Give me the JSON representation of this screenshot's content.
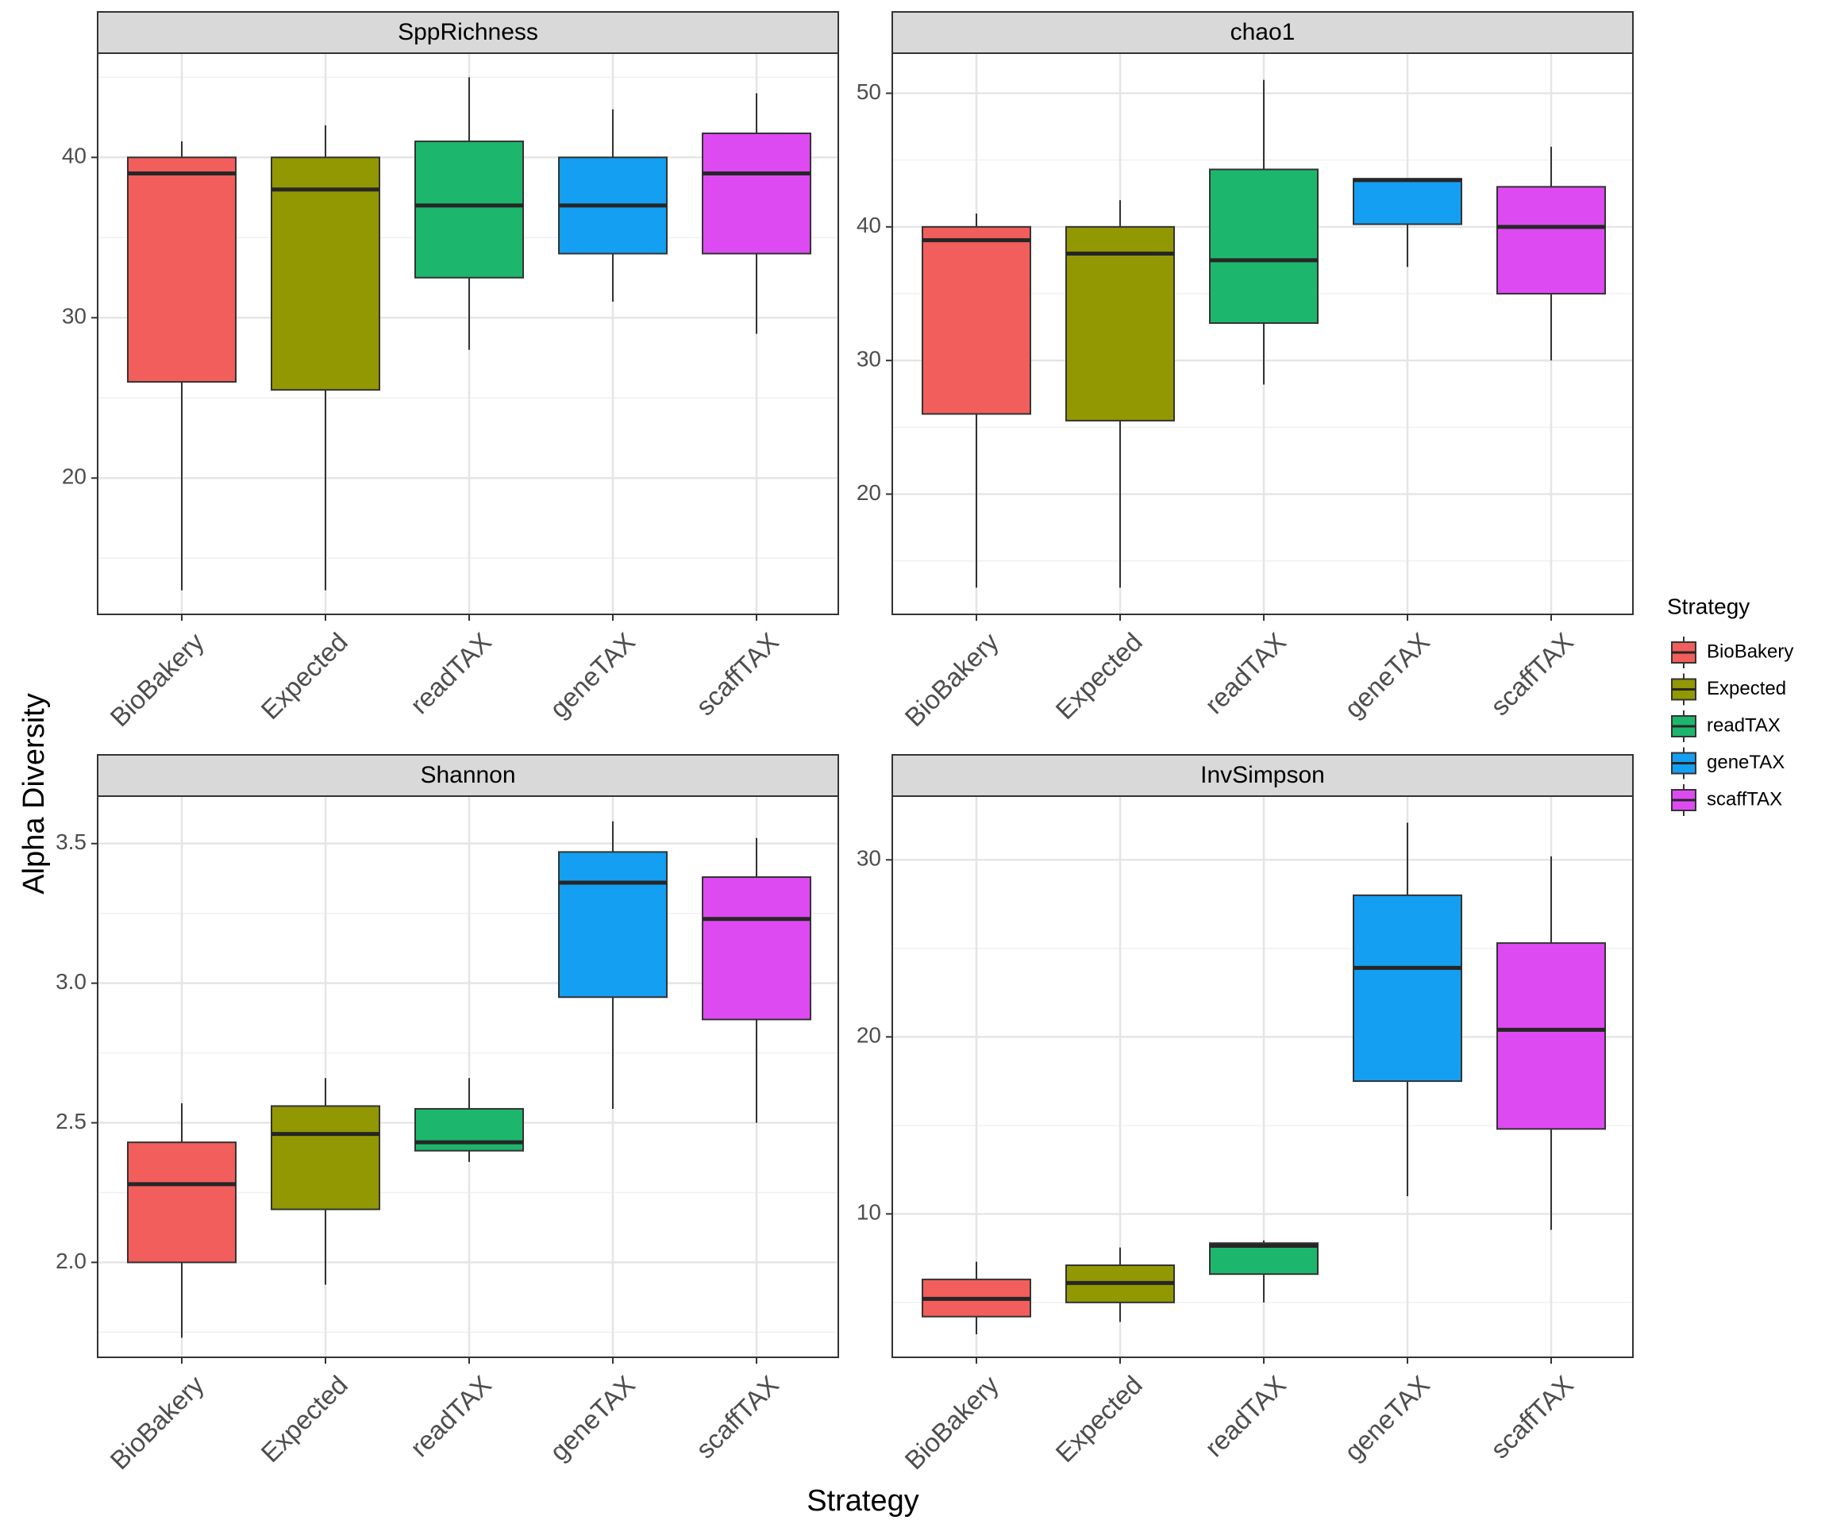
{
  "chart_data": {
    "type": "box",
    "xlabel": "Strategy",
    "ylabel": "Alpha Diversity",
    "categories": [
      "BioBakery",
      "Expected",
      "readTAX",
      "geneTAX",
      "scaffTAX"
    ],
    "colors": {
      "BioBakery": "#F25E5B",
      "Expected": "#929801",
      "readTAX": "#1DB66D",
      "geneTAX": "#149FF2",
      "scaffTAX": "#DE4AF2"
    },
    "legend": {
      "title": "Strategy",
      "position": "right",
      "items": [
        "BioBakery",
        "Expected",
        "readTAX",
        "geneTAX",
        "scaffTAX"
      ]
    },
    "grid": true,
    "panels": [
      {
        "title": "SppRichness",
        "ylim": [
          11.5,
          46.5
        ],
        "ticks": [
          20,
          30,
          40
        ],
        "tick_labels": [
          "20",
          "30",
          "40"
        ],
        "minor_ticks": [
          15,
          25,
          35,
          45
        ],
        "boxes": [
          {
            "category": "BioBakery",
            "min": 13,
            "q1": 26,
            "median": 39,
            "q3": 40,
            "max": 41
          },
          {
            "category": "Expected",
            "min": 13,
            "q1": 25.5,
            "median": 38,
            "q3": 40,
            "max": 42
          },
          {
            "category": "readTAX",
            "min": 28,
            "q1": 32.5,
            "median": 37,
            "q3": 41,
            "max": 45
          },
          {
            "category": "geneTAX",
            "min": 31,
            "q1": 34,
            "median": 37,
            "q3": 40,
            "max": 43
          },
          {
            "category": "scaffTAX",
            "min": 29,
            "q1": 34,
            "median": 39,
            "q3": 41.5,
            "max": 44
          }
        ]
      },
      {
        "title": "chao1",
        "ylim": [
          11.0,
          53.0
        ],
        "ticks": [
          20,
          30,
          40,
          50
        ],
        "tick_labels": [
          "20",
          "30",
          "40",
          "50"
        ],
        "minor_ticks": [
          15,
          25,
          35,
          45
        ],
        "boxes": [
          {
            "category": "BioBakery",
            "min": 13,
            "q1": 26,
            "median": 39,
            "q3": 40,
            "max": 41
          },
          {
            "category": "Expected",
            "min": 13,
            "q1": 25.5,
            "median": 38,
            "q3": 40,
            "max": 42
          },
          {
            "category": "readTAX",
            "min": 28.2,
            "q1": 32.8,
            "median": 37.5,
            "q3": 44.3,
            "max": 51
          },
          {
            "category": "geneTAX",
            "min": 37,
            "q1": 40.2,
            "median": 43.5,
            "q3": 43.6,
            "max": 43.6
          },
          {
            "category": "scaffTAX",
            "min": 30,
            "q1": 35,
            "median": 40,
            "q3": 43,
            "max": 46
          }
        ]
      },
      {
        "title": "Shannon",
        "ylim": [
          1.66,
          3.67
        ],
        "ticks": [
          2.0,
          2.5,
          3.0,
          3.5
        ],
        "tick_labels": [
          "2.0",
          "2.5",
          "3.0",
          "3.5"
        ],
        "minor_ticks": [
          1.75,
          2.25,
          2.75,
          3.25
        ],
        "boxes": [
          {
            "category": "BioBakery",
            "min": 1.73,
            "q1": 2.0,
            "median": 2.28,
            "q3": 2.43,
            "max": 2.57
          },
          {
            "category": "Expected",
            "min": 1.92,
            "q1": 2.19,
            "median": 2.46,
            "q3": 2.56,
            "max": 2.66
          },
          {
            "category": "readTAX",
            "min": 2.36,
            "q1": 2.4,
            "median": 2.43,
            "q3": 2.55,
            "max": 2.66
          },
          {
            "category": "geneTAX",
            "min": 2.55,
            "q1": 2.95,
            "median": 3.36,
            "q3": 3.47,
            "max": 3.58
          },
          {
            "category": "scaffTAX",
            "min": 2.5,
            "q1": 2.87,
            "median": 3.23,
            "q3": 3.38,
            "max": 3.52
          }
        ]
      },
      {
        "title": "InvSimpson",
        "ylim": [
          1.9,
          33.6
        ],
        "ticks": [
          10,
          20,
          30
        ],
        "tick_labels": [
          "10",
          "20",
          "30"
        ],
        "minor_ticks": [
          5,
          15,
          25
        ],
        "boxes": [
          {
            "category": "BioBakery",
            "min": 3.2,
            "q1": 4.2,
            "median": 5.2,
            "q3": 6.3,
            "max": 7.3
          },
          {
            "category": "Expected",
            "min": 3.9,
            "q1": 5.0,
            "median": 6.1,
            "q3": 7.1,
            "max": 8.1
          },
          {
            "category": "readTAX",
            "min": 5.0,
            "q1": 6.6,
            "median": 8.2,
            "q3": 8.35,
            "max": 8.5
          },
          {
            "category": "geneTAX",
            "min": 11.0,
            "q1": 17.5,
            "median": 23.9,
            "q3": 28.0,
            "max": 32.1
          },
          {
            "category": "scaffTAX",
            "min": 9.1,
            "q1": 14.8,
            "median": 20.4,
            "q3": 25.3,
            "max": 30.2
          }
        ]
      }
    ]
  }
}
